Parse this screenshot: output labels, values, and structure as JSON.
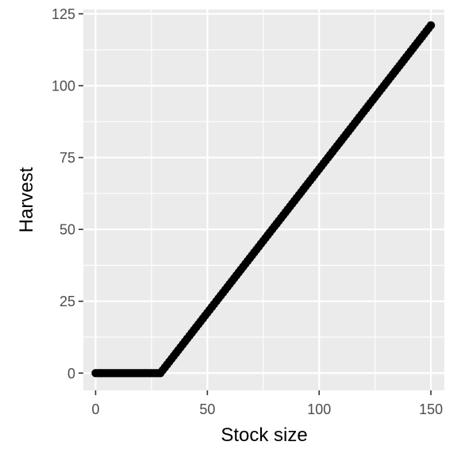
{
  "chart_data": {
    "type": "scatter",
    "xlabel": "Stock size",
    "ylabel": "Harvest",
    "xlim": [
      -5.5,
      156
    ],
    "ylim": [
      -6,
      126.5
    ],
    "x_ticks": [
      0,
      50,
      100,
      150
    ],
    "y_ticks": [
      0,
      25,
      50,
      75,
      100,
      125
    ],
    "x_tick_labels": [
      "0",
      "50",
      "100",
      "150"
    ],
    "y_tick_labels": [
      "0",
      "25",
      "50",
      "75",
      "100",
      "125"
    ],
    "x_minor_ticks": [
      25,
      75,
      125
    ],
    "y_minor_ticks": [
      12.5,
      37.5,
      62.5,
      87.5,
      112.5
    ],
    "grid": true,
    "colors": {
      "panel_background": "#ebebeb",
      "grid": "#ffffff",
      "points": "#000000",
      "tick_text": "#4d4d4d",
      "tick_mark": "#333333"
    },
    "series": [
      {
        "x_start": 0,
        "x_end": 150,
        "x_step": 1,
        "points": "y = max(0, x - 29) for x in 0..150 step 1",
        "escapement": 29,
        "max_y": 121
      }
    ]
  }
}
